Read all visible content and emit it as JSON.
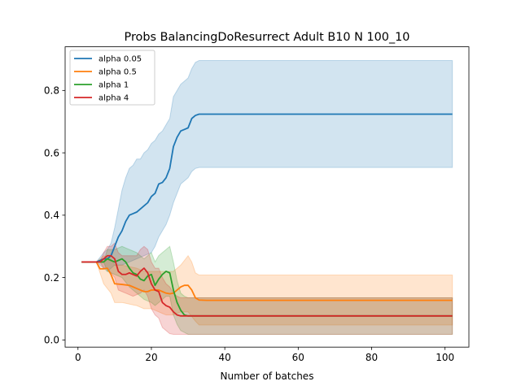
{
  "chart_data": {
    "type": "line",
    "title": "Probs BalancingDoResurrect Adult B10 N 100_10",
    "xlabel": "Number of batches",
    "ylabel": "",
    "xlim": [
      -3.5,
      106.5
    ],
    "ylim": [
      -0.023,
      0.94
    ],
    "xticks": [
      0,
      20,
      40,
      60,
      80,
      100
    ],
    "yticks": [
      0.0,
      0.2,
      0.4,
      0.6,
      0.8
    ],
    "xtick_labels": [
      "0",
      "20",
      "40",
      "60",
      "80",
      "100"
    ],
    "ytick_labels": [
      "0.0",
      "0.2",
      "0.4",
      "0.6",
      "0.8"
    ],
    "legend_position": "top-left",
    "grid": false,
    "shaded_band": "confidence interval around each series",
    "series": [
      {
        "name": "alpha 0.05",
        "color": "#1f77b4",
        "points": [
          [
            1,
            0.25
          ],
          [
            5,
            0.25
          ],
          [
            7,
            0.26
          ],
          [
            8,
            0.26
          ],
          [
            9,
            0.27
          ],
          [
            10,
            0.3
          ],
          [
            11,
            0.33
          ],
          [
            12,
            0.35
          ],
          [
            13,
            0.38
          ],
          [
            14,
            0.4
          ],
          [
            15,
            0.405
          ],
          [
            16,
            0.41
          ],
          [
            17,
            0.42
          ],
          [
            18,
            0.43
          ],
          [
            19,
            0.44
          ],
          [
            20,
            0.46
          ],
          [
            21,
            0.47
          ],
          [
            22,
            0.5
          ],
          [
            23,
            0.505
          ],
          [
            24,
            0.52
          ],
          [
            25,
            0.55
          ],
          [
            26,
            0.62
          ],
          [
            27,
            0.65
          ],
          [
            28,
            0.67
          ],
          [
            29,
            0.675
          ],
          [
            30,
            0.68
          ],
          [
            31,
            0.71
          ],
          [
            32,
            0.72
          ],
          [
            33,
            0.724
          ],
          [
            40,
            0.724
          ],
          [
            102,
            0.724
          ]
        ],
        "band_lower": [
          [
            1,
            0.25
          ],
          [
            5,
            0.25
          ],
          [
            7,
            0.23
          ],
          [
            8,
            0.22
          ],
          [
            9,
            0.23
          ],
          [
            10,
            0.24
          ],
          [
            12,
            0.24
          ],
          [
            14,
            0.25
          ],
          [
            16,
            0.26
          ],
          [
            18,
            0.27
          ],
          [
            20,
            0.28
          ],
          [
            21,
            0.3
          ],
          [
            22,
            0.33
          ],
          [
            23,
            0.35
          ],
          [
            24,
            0.37
          ],
          [
            25,
            0.4
          ],
          [
            26,
            0.44
          ],
          [
            27,
            0.47
          ],
          [
            28,
            0.5
          ],
          [
            29,
            0.51
          ],
          [
            30,
            0.52
          ],
          [
            31,
            0.54
          ],
          [
            32,
            0.55
          ],
          [
            33,
            0.553
          ],
          [
            102,
            0.553
          ]
        ],
        "band_upper": [
          [
            1,
            0.25
          ],
          [
            5,
            0.25
          ],
          [
            7,
            0.28
          ],
          [
            8,
            0.29
          ],
          [
            9,
            0.31
          ],
          [
            10,
            0.36
          ],
          [
            11,
            0.42
          ],
          [
            12,
            0.48
          ],
          [
            13,
            0.52
          ],
          [
            14,
            0.55
          ],
          [
            15,
            0.56
          ],
          [
            16,
            0.58
          ],
          [
            17,
            0.58
          ],
          [
            18,
            0.6
          ],
          [
            19,
            0.61
          ],
          [
            20,
            0.63
          ],
          [
            21,
            0.64
          ],
          [
            22,
            0.66
          ],
          [
            23,
            0.67
          ],
          [
            24,
            0.69
          ],
          [
            25,
            0.71
          ],
          [
            26,
            0.78
          ],
          [
            27,
            0.8
          ],
          [
            28,
            0.82
          ],
          [
            29,
            0.83
          ],
          [
            30,
            0.84
          ],
          [
            31,
            0.87
          ],
          [
            32,
            0.89
          ],
          [
            33,
            0.896
          ],
          [
            102,
            0.896
          ]
        ]
      },
      {
        "name": "alpha 0.5",
        "color": "#ff7f0e",
        "points": [
          [
            1,
            0.25
          ],
          [
            5,
            0.25
          ],
          [
            6,
            0.228
          ],
          [
            7,
            0.228
          ],
          [
            8,
            0.23
          ],
          [
            9,
            0.21
          ],
          [
            10,
            0.18
          ],
          [
            12,
            0.178
          ],
          [
            14,
            0.175
          ],
          [
            15,
            0.17
          ],
          [
            16,
            0.165
          ],
          [
            18,
            0.155
          ],
          [
            19,
            0.155
          ],
          [
            20,
            0.16
          ],
          [
            22,
            0.16
          ],
          [
            23,
            0.155
          ],
          [
            24,
            0.15
          ],
          [
            25,
            0.148
          ],
          [
            26,
            0.15
          ],
          [
            27,
            0.16
          ],
          [
            28,
            0.17
          ],
          [
            29,
            0.175
          ],
          [
            30,
            0.175
          ],
          [
            31,
            0.16
          ],
          [
            32,
            0.135
          ],
          [
            33,
            0.128
          ],
          [
            35,
            0.127
          ],
          [
            102,
            0.127
          ]
        ],
        "band_lower": [
          [
            1,
            0.25
          ],
          [
            5,
            0.25
          ],
          [
            7,
            0.18
          ],
          [
            9,
            0.15
          ],
          [
            10,
            0.12
          ],
          [
            12,
            0.12
          ],
          [
            14,
            0.115
          ],
          [
            16,
            0.11
          ],
          [
            18,
            0.1
          ],
          [
            20,
            0.1
          ],
          [
            22,
            0.09
          ],
          [
            24,
            0.08
          ],
          [
            26,
            0.08
          ],
          [
            28,
            0.09
          ],
          [
            30,
            0.09
          ],
          [
            32,
            0.06
          ],
          [
            33,
            0.048
          ],
          [
            102,
            0.048
          ]
        ],
        "band_upper": [
          [
            1,
            0.25
          ],
          [
            5,
            0.25
          ],
          [
            7,
            0.27
          ],
          [
            9,
            0.26
          ],
          [
            10,
            0.24
          ],
          [
            12,
            0.24
          ],
          [
            14,
            0.235
          ],
          [
            16,
            0.23
          ],
          [
            18,
            0.22
          ],
          [
            20,
            0.22
          ],
          [
            22,
            0.22
          ],
          [
            24,
            0.22
          ],
          [
            26,
            0.22
          ],
          [
            28,
            0.24
          ],
          [
            30,
            0.27
          ],
          [
            31,
            0.25
          ],
          [
            32,
            0.215
          ],
          [
            33,
            0.208
          ],
          [
            102,
            0.208
          ]
        ]
      },
      {
        "name": "alpha 1",
        "color": "#2ca02c",
        "points": [
          [
            1,
            0.25
          ],
          [
            7,
            0.25
          ],
          [
            8,
            0.26
          ],
          [
            9,
            0.255
          ],
          [
            10,
            0.25
          ],
          [
            11,
            0.255
          ],
          [
            12,
            0.26
          ],
          [
            13,
            0.25
          ],
          [
            14,
            0.23
          ],
          [
            15,
            0.215
          ],
          [
            16,
            0.21
          ],
          [
            17,
            0.195
          ],
          [
            18,
            0.19
          ],
          [
            19,
            0.205
          ],
          [
            20,
            0.21
          ],
          [
            21,
            0.175
          ],
          [
            22,
            0.195
          ],
          [
            23,
            0.21
          ],
          [
            24,
            0.22
          ],
          [
            25,
            0.215
          ],
          [
            26,
            0.16
          ],
          [
            27,
            0.12
          ],
          [
            28,
            0.095
          ],
          [
            29,
            0.08
          ],
          [
            30,
            0.077
          ],
          [
            102,
            0.077
          ]
        ],
        "band_lower": [
          [
            1,
            0.25
          ],
          [
            7,
            0.25
          ],
          [
            8,
            0.22
          ],
          [
            10,
            0.21
          ],
          [
            12,
            0.2
          ],
          [
            14,
            0.17
          ],
          [
            16,
            0.15
          ],
          [
            18,
            0.13
          ],
          [
            20,
            0.12
          ],
          [
            21,
            0.11
          ],
          [
            22,
            0.12
          ],
          [
            24,
            0.14
          ],
          [
            25,
            0.14
          ],
          [
            26,
            0.08
          ],
          [
            27,
            0.05
          ],
          [
            28,
            0.03
          ],
          [
            30,
            0.018
          ],
          [
            102,
            0.018
          ]
        ],
        "band_upper": [
          [
            1,
            0.25
          ],
          [
            7,
            0.25
          ],
          [
            8,
            0.29
          ],
          [
            10,
            0.29
          ],
          [
            12,
            0.3
          ],
          [
            14,
            0.29
          ],
          [
            16,
            0.28
          ],
          [
            18,
            0.26
          ],
          [
            20,
            0.28
          ],
          [
            21,
            0.25
          ],
          [
            22,
            0.27
          ],
          [
            24,
            0.29
          ],
          [
            25,
            0.3
          ],
          [
            26,
            0.25
          ],
          [
            27,
            0.19
          ],
          [
            28,
            0.15
          ],
          [
            29,
            0.14
          ],
          [
            30,
            0.135
          ],
          [
            102,
            0.135
          ]
        ]
      },
      {
        "name": "alpha 4",
        "color": "#d62728",
        "points": [
          [
            1,
            0.25
          ],
          [
            6,
            0.25
          ],
          [
            7,
            0.26
          ],
          [
            8,
            0.27
          ],
          [
            9,
            0.27
          ],
          [
            10,
            0.26
          ],
          [
            11,
            0.22
          ],
          [
            12,
            0.21
          ],
          [
            13,
            0.21
          ],
          [
            14,
            0.215
          ],
          [
            15,
            0.21
          ],
          [
            16,
            0.205
          ],
          [
            17,
            0.22
          ],
          [
            18,
            0.23
          ],
          [
            19,
            0.215
          ],
          [
            20,
            0.18
          ],
          [
            21,
            0.16
          ],
          [
            22,
            0.155
          ],
          [
            23,
            0.12
          ],
          [
            24,
            0.11
          ],
          [
            25,
            0.105
          ],
          [
            26,
            0.09
          ],
          [
            27,
            0.08
          ],
          [
            28,
            0.077
          ],
          [
            102,
            0.077
          ]
        ],
        "band_lower": [
          [
            1,
            0.25
          ],
          [
            6,
            0.25
          ],
          [
            7,
            0.23
          ],
          [
            8,
            0.23
          ],
          [
            10,
            0.2
          ],
          [
            11,
            0.16
          ],
          [
            13,
            0.15
          ],
          [
            15,
            0.14
          ],
          [
            17,
            0.15
          ],
          [
            18,
            0.16
          ],
          [
            19,
            0.14
          ],
          [
            20,
            0.1
          ],
          [
            21,
            0.08
          ],
          [
            22,
            0.07
          ],
          [
            23,
            0.04
          ],
          [
            24,
            0.03
          ],
          [
            25,
            0.02
          ],
          [
            26,
            0.018
          ],
          [
            102,
            0.018
          ]
        ],
        "band_upper": [
          [
            1,
            0.25
          ],
          [
            6,
            0.25
          ],
          [
            7,
            0.28
          ],
          [
            8,
            0.3
          ],
          [
            9,
            0.3
          ],
          [
            10,
            0.31
          ],
          [
            11,
            0.28
          ],
          [
            12,
            0.27
          ],
          [
            14,
            0.27
          ],
          [
            16,
            0.27
          ],
          [
            17,
            0.29
          ],
          [
            18,
            0.3
          ],
          [
            19,
            0.29
          ],
          [
            20,
            0.25
          ],
          [
            21,
            0.23
          ],
          [
            22,
            0.23
          ],
          [
            23,
            0.2
          ],
          [
            24,
            0.18
          ],
          [
            25,
            0.17
          ],
          [
            26,
            0.15
          ],
          [
            27,
            0.14
          ],
          [
            28,
            0.135
          ],
          [
            102,
            0.135
          ]
        ]
      }
    ]
  }
}
